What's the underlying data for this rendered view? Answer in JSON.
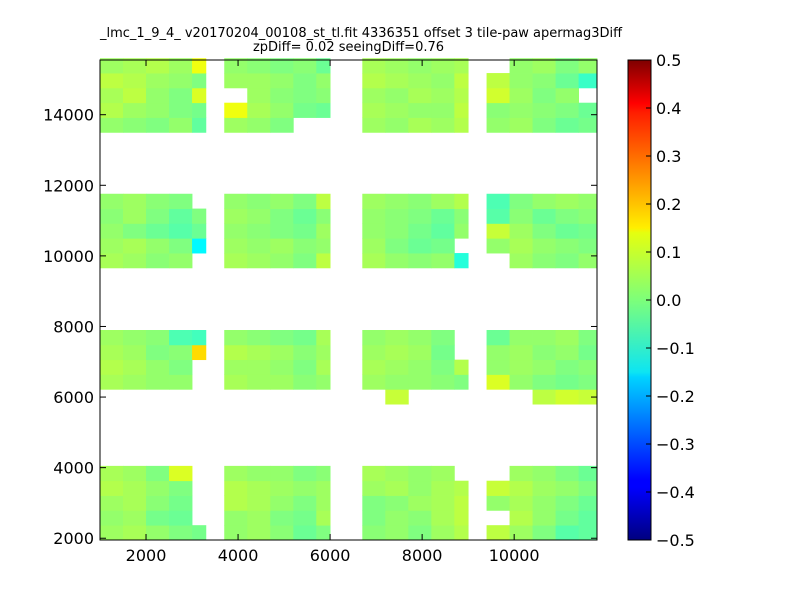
{
  "chart_data": {
    "type": "heatmap",
    "title_line1": "_lmc_1_9_4_ v20170204_00108_st_tl.fit 4336351 offset 3 tile-paw apermag3Diff",
    "title_line2": "zpDiff= 0.02 seeingDiff=0.76",
    "xlabel": "",
    "ylabel": "",
    "xlim": [
      1000,
      11800
    ],
    "ylim": [
      1950,
      15550
    ],
    "xticks": [
      "2000",
      "4000",
      "6000",
      "8000",
      "10000"
    ],
    "xtick_values": [
      2000,
      4000,
      6000,
      8000,
      10000
    ],
    "yticks": [
      "2000",
      "4000",
      "6000",
      "8000",
      "10000",
      "12000",
      "14000"
    ],
    "ytick_values": [
      2000,
      4000,
      6000,
      8000,
      10000,
      12000,
      14000
    ],
    "colorbar": {
      "colormap": "jet",
      "vmin": -0.5,
      "vmax": 0.5,
      "ticks": [
        "0.5",
        "0.4",
        "0.3",
        "0.2",
        "0.1",
        "0.0",
        "−0.1",
        "−0.2",
        "−0.3",
        "−0.4",
        "−0.5"
      ],
      "tick_values": [
        0.5,
        0.4,
        0.3,
        0.2,
        0.1,
        0.0,
        -0.1,
        -0.2,
        -0.3,
        -0.4,
        -0.5
      ]
    },
    "grid": false,
    "cell_size": [
      500,
      420
    ],
    "x_columns": [
      1000,
      1500,
      2000,
      2500,
      3000,
      3700,
      4200,
      4700,
      5200,
      5700,
      6700,
      7200,
      7700,
      8200,
      8700,
      9400,
      9900,
      10400,
      10900,
      11400
    ],
    "column_widths": [
      500,
      500,
      500,
      500,
      300,
      500,
      500,
      500,
      500,
      300,
      500,
      500,
      500,
      500,
      300,
      500,
      500,
      500,
      500,
      400
    ],
    "bands": [
      {
        "y_rows": [
          1950,
          2370,
          2790,
          3210,
          3630
        ]
      },
      {
        "y_rows": [
          5800,
          6220,
          6640,
          7060,
          7480
        ]
      },
      {
        "y_rows": [
          9660,
          10080,
          10500,
          10920,
          11340
        ]
      },
      {
        "y_rows": [
          13500,
          13920,
          14340,
          14760,
          15180
        ]
      }
    ],
    "band_values": [
      [
        [
          0.03,
          0.04,
          0.02,
          0.0,
          -0.01,
          0.02,
          0.03,
          0.01,
          -0.02,
          0.0,
          0.01,
          0.02,
          0.0,
          0.03,
          0.05,
          0.06,
          0.03,
          0.0,
          -0.04,
          -0.03
        ],
        [
          0.02,
          0.03,
          -0.01,
          -0.02,
          null,
          0.02,
          0.03,
          0.0,
          -0.01,
          0.04,
          0.0,
          0.02,
          0.01,
          0.04,
          0.06,
          null,
          0.05,
          0.02,
          -0.01,
          -0.03
        ],
        [
          0.03,
          0.04,
          0.01,
          -0.01,
          null,
          0.05,
          0.04,
          0.02,
          0.0,
          0.03,
          0.0,
          0.01,
          0.03,
          0.04,
          0.06,
          0.02,
          0.04,
          0.02,
          0.0,
          -0.02
        ],
        [
          0.05,
          0.04,
          0.02,
          0.0,
          null,
          0.05,
          0.04,
          0.03,
          0.02,
          0.03,
          0.03,
          0.04,
          0.02,
          0.04,
          0.05,
          0.07,
          0.05,
          0.03,
          0.02,
          0.0
        ],
        [
          0.04,
          0.03,
          0.0,
          0.09,
          null,
          0.03,
          0.02,
          0.02,
          0.0,
          0.01,
          0.04,
          0.03,
          0.02,
          0.03,
          null,
          null,
          0.03,
          0.02,
          0.0,
          -0.02
        ]
      ],
      [
        [
          null,
          null,
          null,
          null,
          null,
          null,
          null,
          null,
          null,
          null,
          null,
          0.07,
          null,
          null,
          null,
          null,
          null,
          0.06,
          0.08,
          0.07
        ],
        [
          0.04,
          0.03,
          0.02,
          0.02,
          null,
          0.04,
          0.03,
          0.03,
          0.01,
          0.02,
          0.03,
          0.02,
          0.02,
          0.01,
          0.0,
          0.09,
          0.02,
          0.0,
          -0.01,
          0.0
        ],
        [
          0.05,
          0.04,
          0.02,
          0.0,
          null,
          0.03,
          0.03,
          0.02,
          0.0,
          0.04,
          0.04,
          0.03,
          0.02,
          0.0,
          0.05,
          0.02,
          0.03,
          0.02,
          0.0,
          0.01
        ],
        [
          0.04,
          0.03,
          0.0,
          0.01,
          0.16,
          0.05,
          0.04,
          0.03,
          0.01,
          0.03,
          0.03,
          0.04,
          0.03,
          -0.01,
          null,
          0.02,
          0.03,
          0.01,
          0.02,
          -0.01
        ],
        [
          0.03,
          0.02,
          0.01,
          -0.05,
          -0.06,
          0.02,
          0.01,
          0.0,
          -0.01,
          0.04,
          0.02,
          0.03,
          0.02,
          0.0,
          null,
          -0.02,
          0.02,
          0.02,
          0.03,
          0.0
        ]
      ],
      [
        [
          0.04,
          0.03,
          0.01,
          0.02,
          null,
          0.04,
          0.03,
          0.02,
          0.0,
          0.06,
          0.04,
          0.02,
          0.01,
          0.02,
          -0.09,
          null,
          0.03,
          0.01,
          0.0,
          0.02
        ],
        [
          0.03,
          0.04,
          0.02,
          0.0,
          -0.13,
          0.03,
          0.02,
          0.03,
          0.01,
          0.02,
          0.03,
          0.0,
          -0.02,
          -0.01,
          null,
          0.02,
          0.04,
          0.02,
          0.01,
          0.0
        ],
        [
          0.02,
          0.0,
          -0.02,
          -0.04,
          -0.02,
          0.02,
          0.01,
          0.0,
          -0.01,
          0.03,
          0.02,
          0.01,
          -0.01,
          -0.03,
          0.02,
          0.07,
          0.03,
          0.0,
          -0.02,
          -0.01
        ],
        [
          0.01,
          0.03,
          0.0,
          -0.03,
          0.0,
          0.03,
          0.02,
          0.0,
          -0.02,
          0.01,
          0.02,
          0.01,
          0.0,
          -0.02,
          0.01,
          -0.04,
          0.01,
          -0.02,
          0.0,
          0.01
        ],
        [
          0.02,
          0.03,
          0.01,
          0.0,
          null,
          0.02,
          0.01,
          0.02,
          0.0,
          0.06,
          0.03,
          0.02,
          0.01,
          0.03,
          0.05,
          -0.05,
          0.0,
          0.02,
          0.03,
          0.02
        ]
      ],
      [
        [
          0.02,
          0.01,
          0.0,
          0.02,
          -0.03,
          0.03,
          0.02,
          0.0,
          null,
          null,
          0.03,
          0.02,
          0.04,
          0.03,
          0.05,
          0.02,
          0.03,
          0.0,
          -0.02,
          -0.01
        ],
        [
          0.05,
          0.03,
          0.02,
          0.0,
          -0.01,
          0.11,
          0.04,
          0.02,
          -0.01,
          -0.02,
          0.04,
          0.03,
          0.02,
          0.02,
          0.06,
          0.01,
          0.02,
          0.01,
          0.0,
          -0.02
        ],
        [
          0.04,
          0.06,
          0.02,
          0.0,
          0.09,
          null,
          0.03,
          0.01,
          0.0,
          0.01,
          0.03,
          0.02,
          0.04,
          0.03,
          0.05,
          0.08,
          0.03,
          0.0,
          0.02,
          null
        ],
        [
          0.06,
          0.05,
          0.03,
          0.02,
          0.0,
          0.03,
          0.03,
          0.02,
          0.0,
          0.02,
          0.05,
          0.04,
          0.03,
          0.02,
          0.06,
          0.06,
          0.02,
          0.01,
          -0.02,
          -0.07
        ],
        [
          0.03,
          0.04,
          0.05,
          0.03,
          0.11,
          0.02,
          0.01,
          0.0,
          0.01,
          -0.02,
          0.04,
          0.03,
          0.02,
          0.03,
          0.04,
          null,
          0.02,
          0.03,
          0.0,
          0.02
        ]
      ]
    ]
  }
}
